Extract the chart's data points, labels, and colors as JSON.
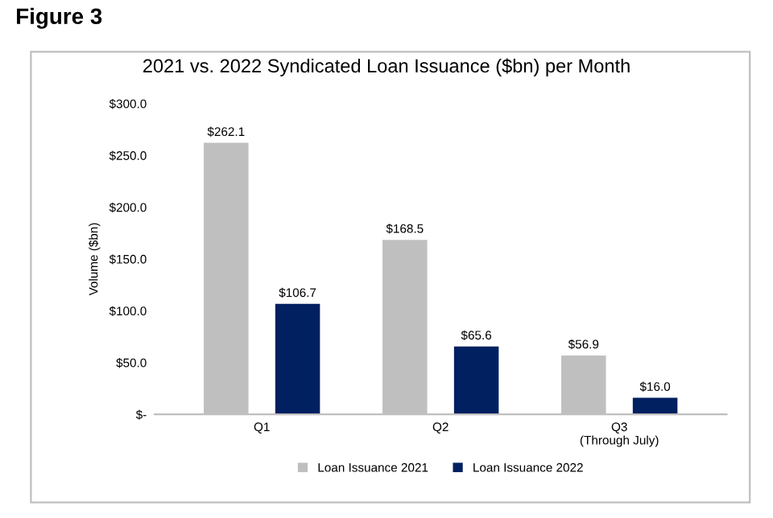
{
  "chart_data": {
    "type": "bar",
    "title": "2021 vs. 2022 Syndicated Loan Issuance ($bn) per Month",
    "annotations": [
      "Figure 3"
    ],
    "ylabel": "Volume ($bn)",
    "categories": [
      "Q1",
      "Q2",
      "Q3\n(Through July)"
    ],
    "series": [
      {
        "name": "Loan Issuance 2021",
        "color": "#bfbfbf",
        "values": [
          262.1,
          168.5,
          56.9
        ],
        "value_labels": [
          "$262.1",
          "$168.5",
          "$56.9"
        ]
      },
      {
        "name": "Loan Issuance 2022",
        "color": "#002060",
        "values": [
          106.7,
          65.6,
          16.0
        ],
        "value_labels": [
          "$106.7",
          "$65.6",
          "$16.0"
        ]
      }
    ],
    "ylim": [
      0,
      300
    ],
    "yticks": [
      {
        "value": 0,
        "label": "$-"
      },
      {
        "value": 50,
        "label": "$50.0"
      },
      {
        "value": 100,
        "label": "$100.0"
      },
      {
        "value": 150,
        "label": "$150.0"
      },
      {
        "value": 200,
        "label": "$200.0"
      },
      {
        "value": 250,
        "label": "$250.0"
      },
      {
        "value": 300,
        "label": "$300.0"
      }
    ],
    "grid": false,
    "legend": "bottom"
  }
}
